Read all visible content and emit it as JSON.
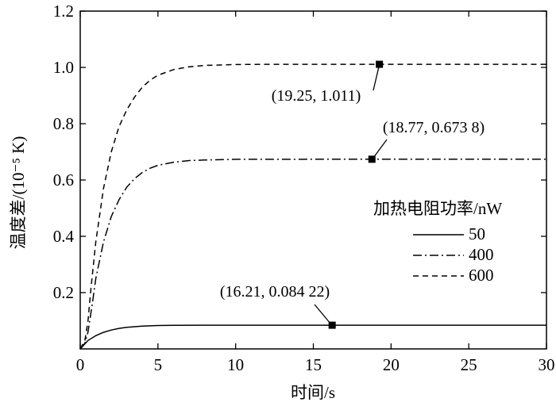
{
  "chart_data": {
    "type": "line",
    "xlabel": "时间/s",
    "ylabel": "温度差/(10⁻⁵ K)",
    "xlim": [
      0,
      30
    ],
    "ylim": [
      0,
      1.2
    ],
    "xticks": [
      0,
      5,
      10,
      15,
      20,
      25,
      30
    ],
    "yticks": [
      0.2,
      0.4,
      0.6,
      0.8,
      1.0,
      1.2
    ],
    "xtick_labels": [
      "0",
      "5",
      "10",
      "15",
      "20",
      "25",
      "30"
    ],
    "ytick_labels": [
      "0.2",
      "0.4",
      "0.6",
      "0.8",
      "1.0",
      "1.2"
    ],
    "grid": false,
    "legend": {
      "title": "加热电阻功率/nW",
      "placement": "right"
    },
    "series": [
      {
        "name": "50",
        "style": "solid",
        "x": [
          0,
          0.5,
          1,
          1.5,
          2,
          2.5,
          3,
          4,
          5,
          6,
          8,
          10,
          15,
          20,
          25,
          30
        ],
        "values": [
          0,
          0.03,
          0.047,
          0.059,
          0.067,
          0.073,
          0.077,
          0.081,
          0.083,
          0.0838,
          0.0841,
          0.0842,
          0.08422,
          0.08422,
          0.08422,
          0.08422
        ]
      },
      {
        "name": "400",
        "style": "dashdot",
        "x": [
          0,
          0.3,
          0.5,
          0.8,
          1,
          1.5,
          2,
          2.5,
          3,
          3.5,
          4,
          4.5,
          5,
          6,
          7,
          8,
          10,
          15,
          20,
          25,
          30
        ],
        "values": [
          0,
          0.02,
          0.06,
          0.17,
          0.25,
          0.38,
          0.47,
          0.53,
          0.575,
          0.605,
          0.627,
          0.642,
          0.652,
          0.663,
          0.669,
          0.671,
          0.6734,
          0.6738,
          0.6738,
          0.6738,
          0.6738
        ]
      },
      {
        "name": "600",
        "style": "dashed",
        "x": [
          0,
          0.3,
          0.5,
          0.7,
          1,
          1.5,
          2,
          2.5,
          3,
          3.5,
          4,
          4.5,
          5,
          6,
          7,
          8,
          10,
          12,
          15,
          20,
          25,
          30
        ],
        "values": [
          0,
          0.03,
          0.1,
          0.22,
          0.38,
          0.57,
          0.7,
          0.79,
          0.85,
          0.895,
          0.93,
          0.955,
          0.972,
          0.992,
          1.002,
          1.007,
          1.01,
          1.011,
          1.011,
          1.011,
          1.011,
          1.011
        ]
      }
    ],
    "markers": [
      {
        "x": 19.25,
        "y": 1.011,
        "label": "(19.25, 1.011)"
      },
      {
        "x": 18.77,
        "y": 0.6738,
        "label": "(18.77, 0.673 8)"
      },
      {
        "x": 16.21,
        "y": 0.08422,
        "label": "(16.21, 0.084 22)"
      }
    ]
  }
}
